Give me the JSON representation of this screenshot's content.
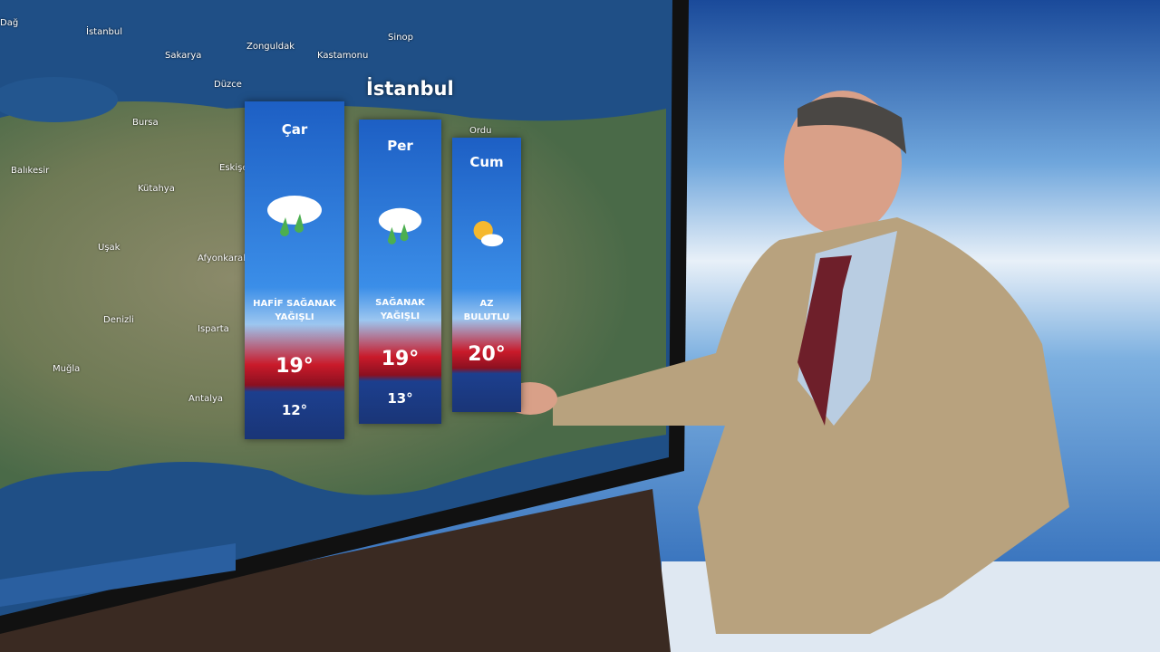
{
  "map": {
    "title": "İstanbul",
    "cities": [
      {
        "label": "Dağ"
      },
      {
        "label": "İstanbul"
      },
      {
        "label": "Sakarya"
      },
      {
        "label": "Zonguldak"
      },
      {
        "label": "Kastamonu"
      },
      {
        "label": "Sinop"
      },
      {
        "label": "Düzce"
      },
      {
        "label": "Bursa"
      },
      {
        "label": "Balıkesir"
      },
      {
        "label": "Eskişe"
      },
      {
        "label": "Kütahya"
      },
      {
        "label": "Uşak"
      },
      {
        "label": "Afyonkarahi"
      },
      {
        "label": "Denizli"
      },
      {
        "label": "Isparta"
      },
      {
        "label": "Muğla"
      },
      {
        "label": "Antalya"
      },
      {
        "label": "Ordu"
      }
    ]
  },
  "forecast": [
    {
      "day": "Çar",
      "condition": "HAFİF SAĞANAK YAĞIŞLI",
      "high": "19°",
      "low": "12°"
    },
    {
      "day": "Per",
      "condition": "SAĞANAK YAĞIŞLI",
      "high": "19°",
      "low": "13°"
    },
    {
      "day": "Cum",
      "condition": "AZ BULUTLU",
      "high": "20°"
    }
  ]
}
